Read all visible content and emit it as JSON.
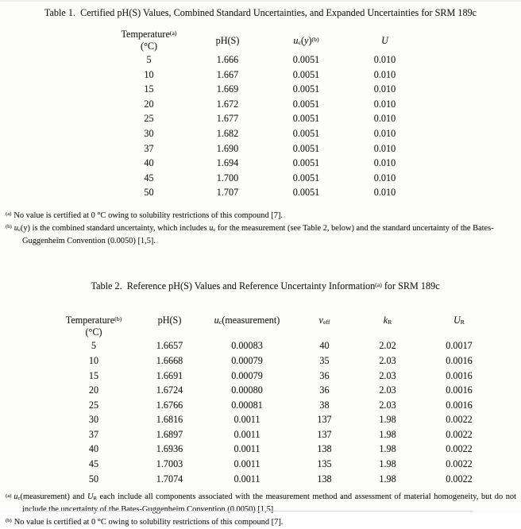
{
  "table1": {
    "title": "Table 1.  Certified pH(S) Values, Combined Standard Uncertainties, and Expanded Uncertainties for SRM 189c",
    "header": {
      "temperature": "Temperature",
      "temperature_marker": "(a)",
      "temperature_unit": "(°C)",
      "ph": "pH(S)",
      "uc_base": "u",
      "uc_sub": "c",
      "uc_open": "(",
      "uc_var": "y",
      "uc_close": ")",
      "uc_marker": "(b)",
      "expanded": "U"
    },
    "rows": [
      [
        "5",
        "1.666",
        "0.0051",
        "0.010"
      ],
      [
        "10",
        "1.667",
        "0.0051",
        "0.010"
      ],
      [
        "15",
        "1.669",
        "0.0051",
        "0.010"
      ],
      [
        "20",
        "1.672",
        "0.0051",
        "0.010"
      ],
      [
        "25",
        "1.677",
        "0.0051",
        "0.010"
      ],
      [
        "30",
        "1.682",
        "0.0051",
        "0.010"
      ],
      [
        "37",
        "1.690",
        "0.0051",
        "0.010"
      ],
      [
        "40",
        "1.694",
        "0.0051",
        "0.010"
      ],
      [
        "45",
        "1.700",
        "0.0051",
        "0.010"
      ],
      [
        "50",
        "1.707",
        "0.0051",
        "0.010"
      ]
    ],
    "footnotes": {
      "a_marker": "(a)",
      "a_text": "No value is certified at 0 °C owing to solubility restrictions of this compound [7].",
      "b_marker": "(b)",
      "b_u": "u",
      "b_usub": "c",
      "b_text1": "(y) is the combined standard uncertainty, which includes ",
      "b_u2": "u",
      "b_usub2": "c",
      "b_text2": " for the measurement (see Table 2, below) and the standard uncertainty of the Bates-Guggenheim Convention (0.0050) [1,5]."
    }
  },
  "table2": {
    "title_prefix": "Table 2.  Reference pH(S) Values and Reference Uncertainty Information",
    "title_marker": "(a)",
    "title_suffix": " for SRM 189c",
    "header": {
      "temperature": "Temperature",
      "temperature_marker": "(b)",
      "temperature_unit": "(°C)",
      "ph": "pH(S)",
      "uc_base": "u",
      "uc_sub": "c",
      "uc_arg": "(measurement)",
      "v_base": "v",
      "v_sub": "eff",
      "k_base": "k",
      "k_sub": "R",
      "U_base": "U",
      "U_sub": "R"
    },
    "rows": [
      [
        "5",
        "1.6657",
        "0.00083",
        "40",
        "2.02",
        "0.0017"
      ],
      [
        "10",
        "1.6668",
        "0.00079",
        "35",
        "2.03",
        "0.0016"
      ],
      [
        "15",
        "1.6691",
        "0.00079",
        "36",
        "2.03",
        "0.0016"
      ],
      [
        "20",
        "1.6724",
        "0.00080",
        "36",
        "2.03",
        "0.0016"
      ],
      [
        "25",
        "1.6766",
        "0.00081",
        "38",
        "2.03",
        "0.0016"
      ],
      [
        "30",
        "1.6816",
        "0.0011",
        "137",
        "1.98",
        "0.0022"
      ],
      [
        "37",
        "1.6897",
        "0.0011",
        "137",
        "1.98",
        "0.0022"
      ],
      [
        "40",
        "1.6936",
        "0.0011",
        "138",
        "1.98",
        "0.0022"
      ],
      [
        "45",
        "1.7003",
        "0.0011",
        "135",
        "1.98",
        "0.0022"
      ],
      [
        "50",
        "1.7074",
        "0.0011",
        "138",
        "1.98",
        "0.0022"
      ]
    ],
    "footnotes": {
      "a_marker": "(a)",
      "a_u": "u",
      "a_usub": "c",
      "a_text1": "(measurement) and ",
      "a_U": "U",
      "a_Usub": "R",
      "a_text2": " each include all components associated with the measurement method and assessment of material homogeneity, but do not include the uncertainty of the Bates-Guggenheim Convention (0.0050) [1,5].",
      "b_marker": "(b)",
      "b_text": "No value is certified at 0 °C owing to solubility restrictions of this compound [7]."
    }
  }
}
